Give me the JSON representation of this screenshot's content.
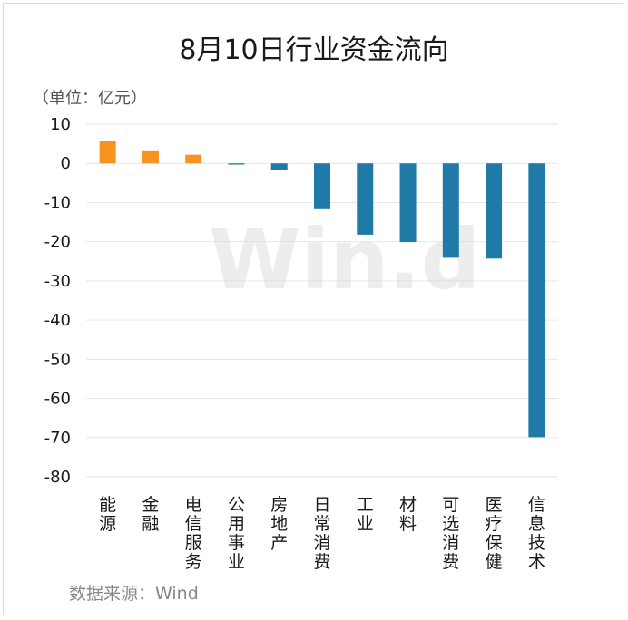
{
  "chart_data": {
    "type": "bar",
    "title": "8月10日行业资金流向",
    "unit_label": "（单位：亿元）",
    "source": "数据来源：Wind",
    "watermark": "Win.d",
    "categories": [
      "能源",
      "金融",
      "电信服务",
      "公用事业",
      "房地产",
      "日常消费",
      "工业",
      "材料",
      "可选消费",
      "医疗保健",
      "信息技术"
    ],
    "values": [
      5.6,
      3.1,
      2.2,
      -0.3,
      -1.6,
      -11.7,
      -18.2,
      -20.1,
      -24.1,
      -24.3,
      -69.9
    ],
    "ylim": [
      -80,
      10
    ],
    "yticks": [
      10,
      0,
      -10,
      -20,
      -30,
      -40,
      -50,
      -60,
      -70,
      -80
    ],
    "grid": true,
    "colors": {
      "positive": "#f7931e",
      "negative": "#1f7aa8",
      "grid": "#e6e6e6"
    }
  }
}
